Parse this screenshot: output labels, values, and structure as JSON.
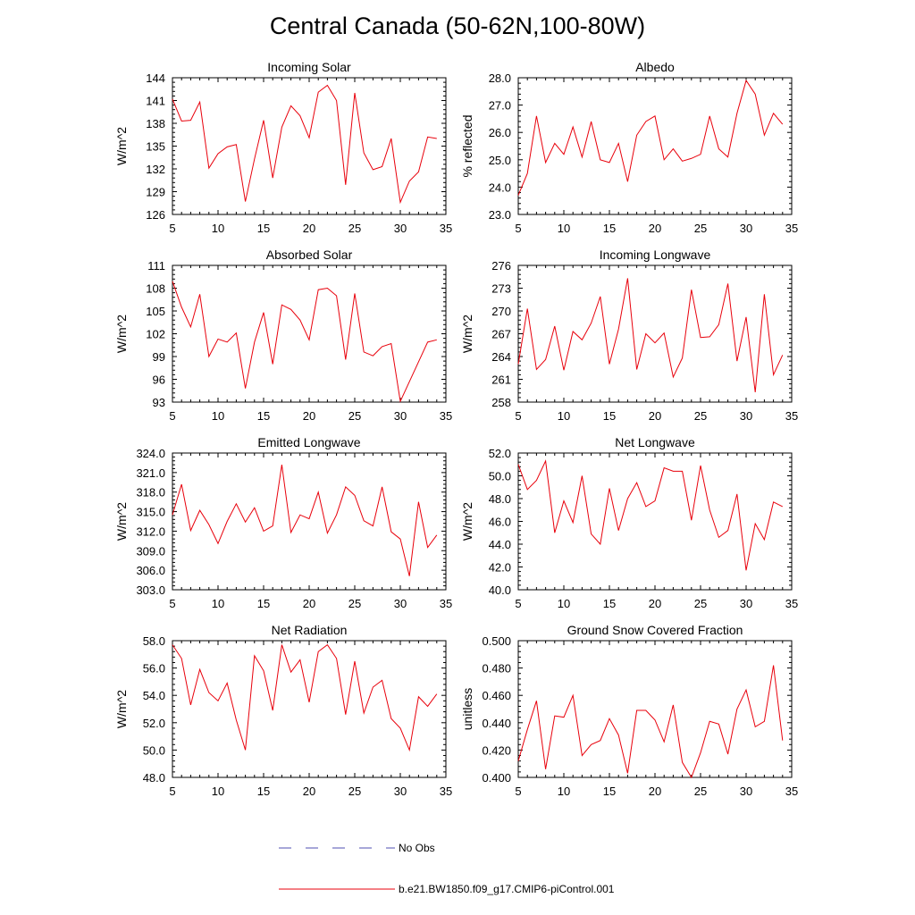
{
  "title": "Central Canada (50-62N,100-80W)",
  "legend": {
    "obs_label": "No Obs",
    "model_label": "b.e21.BW1850.f09_g17.CMIP6-piControl.001",
    "obs_color": "#4f4fb0",
    "model_color": "#e8000b"
  },
  "chart_data": [
    {
      "type": "line",
      "title": "Incoming Solar",
      "ylabel": "W/m^2",
      "xlabel": "",
      "xlim": [
        5,
        35
      ],
      "ylim": [
        126,
        144
      ],
      "xticks": [
        5,
        10,
        15,
        20,
        25,
        30,
        35
      ],
      "yticks": [
        "126",
        "129",
        "132",
        "135",
        "138",
        "141",
        "144"
      ],
      "x": [
        5,
        6,
        7,
        8,
        9,
        10,
        11,
        12,
        13,
        14,
        15,
        16,
        17,
        18,
        19,
        20,
        21,
        22,
        23,
        24,
        25,
        26,
        27,
        28,
        29,
        30,
        31,
        32,
        33,
        34
      ],
      "series": [
        {
          "name": "b.e21.BW1850.f09_g17.CMIP6-piControl.001",
          "values": [
            141.2,
            138.3,
            138.4,
            140.8,
            132.1,
            134.0,
            134.9,
            135.2,
            127.7,
            133.3,
            138.4,
            130.8,
            137.5,
            140.3,
            139.0,
            136.1,
            142.1,
            143.0,
            141.0,
            129.9,
            142.0,
            134.1,
            131.9,
            132.3,
            136.0,
            127.6,
            130.4,
            131.6,
            136.2,
            136.0
          ]
        }
      ]
    },
    {
      "type": "line",
      "title": "Albedo",
      "ylabel": "% reflected",
      "xlabel": "",
      "xlim": [
        5,
        35
      ],
      "ylim": [
        23,
        28
      ],
      "xticks": [
        5,
        10,
        15,
        20,
        25,
        30,
        35
      ],
      "yticks": [
        "23.0",
        "24.0",
        "25.0",
        "26.0",
        "27.0",
        "28.0"
      ],
      "x": [
        5,
        6,
        7,
        8,
        9,
        10,
        11,
        12,
        13,
        14,
        15,
        16,
        17,
        18,
        19,
        20,
        21,
        22,
        23,
        24,
        25,
        26,
        27,
        28,
        29,
        30,
        31,
        32,
        33,
        34
      ],
      "series": [
        {
          "name": "b.e21.BW1850.f09_g17.CMIP6-piControl.001",
          "values": [
            23.7,
            24.5,
            26.6,
            24.9,
            25.6,
            25.2,
            26.2,
            25.1,
            26.4,
            25.0,
            24.9,
            25.6,
            24.2,
            25.9,
            26.4,
            26.6,
            25.0,
            25.4,
            24.95,
            25.05,
            25.2,
            26.6,
            25.4,
            25.1,
            26.7,
            27.9,
            27.4,
            25.9,
            26.7,
            26.3
          ]
        }
      ]
    },
    {
      "type": "line",
      "title": "Absorbed Solar",
      "ylabel": "W/m^2",
      "xlabel": "",
      "xlim": [
        5,
        35
      ],
      "ylim": [
        93,
        111
      ],
      "xticks": [
        5,
        10,
        15,
        20,
        25,
        30,
        35
      ],
      "yticks": [
        "93",
        "96",
        "99",
        "102",
        "105",
        "108",
        "111"
      ],
      "x": [
        5,
        6,
        7,
        8,
        9,
        10,
        11,
        12,
        13,
        14,
        15,
        16,
        17,
        18,
        19,
        20,
        21,
        22,
        23,
        24,
        25,
        26,
        27,
        28,
        29,
        30,
        31,
        32,
        33,
        34
      ],
      "series": [
        {
          "name": "b.e21.BW1850.f09_g17.CMIP6-piControl.001",
          "values": [
            108.9,
            105.5,
            102.9,
            107.2,
            99.0,
            101.3,
            100.9,
            102.1,
            94.8,
            100.9,
            104.8,
            98.0,
            105.8,
            105.2,
            103.8,
            101.2,
            107.8,
            108.0,
            107.0,
            98.6,
            107.3,
            99.6,
            99.1,
            100.3,
            100.7,
            93.1,
            95.7,
            98.3,
            100.9,
            101.2
          ]
        }
      ]
    },
    {
      "type": "line",
      "title": "Incoming Longwave",
      "ylabel": "W/m^2",
      "xlabel": "",
      "xlim": [
        5,
        35
      ],
      "ylim": [
        258,
        276
      ],
      "xticks": [
        5,
        10,
        15,
        20,
        25,
        30,
        35
      ],
      "yticks": [
        "258",
        "261",
        "264",
        "267",
        "270",
        "273",
        "276"
      ],
      "x": [
        5,
        6,
        7,
        8,
        9,
        10,
        11,
        12,
        13,
        14,
        15,
        16,
        17,
        18,
        19,
        20,
        21,
        22,
        23,
        24,
        25,
        26,
        27,
        28,
        29,
        30,
        31,
        32,
        33,
        34
      ],
      "series": [
        {
          "name": "b.e21.BW1850.f09_g17.CMIP6-piControl.001",
          "values": [
            263.0,
            270.3,
            262.3,
            263.6,
            268.0,
            262.2,
            267.3,
            266.2,
            268.4,
            271.9,
            263.0,
            267.6,
            274.3,
            262.3,
            267.0,
            265.8,
            267.1,
            261.3,
            263.8,
            272.8,
            266.5,
            266.6,
            268.2,
            273.6,
            263.4,
            269.2,
            259.3,
            272.2,
            261.6,
            264.2
          ]
        }
      ]
    },
    {
      "type": "line",
      "title": "Emitted Longwave",
      "ylabel": "W/m^2",
      "xlabel": "",
      "xlim": [
        5,
        35
      ],
      "ylim": [
        303,
        324
      ],
      "xticks": [
        5,
        10,
        15,
        20,
        25,
        30,
        35
      ],
      "yticks": [
        "303.0",
        "306.0",
        "309.0",
        "312.0",
        "315.0",
        "318.0",
        "321.0",
        "324.0"
      ],
      "x": [
        5,
        6,
        7,
        8,
        9,
        10,
        11,
        12,
        13,
        14,
        15,
        16,
        17,
        18,
        19,
        20,
        21,
        22,
        23,
        24,
        25,
        26,
        27,
        28,
        29,
        30,
        31,
        32,
        33,
        34
      ],
      "series": [
        {
          "name": "b.e21.BW1850.f09_g17.CMIP6-piControl.001",
          "values": [
            314.5,
            319.2,
            312.1,
            315.2,
            313.0,
            310.1,
            313.5,
            316.2,
            313.4,
            315.6,
            312.0,
            312.8,
            322.2,
            311.8,
            314.5,
            313.9,
            318.0,
            311.7,
            314.5,
            318.8,
            317.5,
            313.6,
            312.8,
            318.8,
            311.9,
            310.8,
            305.1,
            316.5,
            309.5,
            311.4
          ]
        }
      ]
    },
    {
      "type": "line",
      "title": "Net Longwave",
      "ylabel": "W/m^2",
      "xlabel": "",
      "xlim": [
        5,
        35
      ],
      "ylim": [
        40,
        52
      ],
      "xticks": [
        5,
        10,
        15,
        20,
        25,
        30,
        35
      ],
      "yticks": [
        "40.0",
        "42.0",
        "44.0",
        "46.0",
        "48.0",
        "50.0",
        "52.0"
      ],
      "x": [
        5,
        6,
        7,
        8,
        9,
        10,
        11,
        12,
        13,
        14,
        15,
        16,
        17,
        18,
        19,
        20,
        21,
        22,
        23,
        24,
        25,
        26,
        27,
        28,
        29,
        30,
        31,
        32,
        33,
        34
      ],
      "series": [
        {
          "name": "b.e21.BW1850.f09_g17.CMIP6-piControl.001",
          "values": [
            51.0,
            48.8,
            49.6,
            51.3,
            45.0,
            47.8,
            45.9,
            50.0,
            44.9,
            44.0,
            48.9,
            45.2,
            48.0,
            49.4,
            47.3,
            47.8,
            50.7,
            50.4,
            50.4,
            46.1,
            50.9,
            47.0,
            44.6,
            45.2,
            48.4,
            41.7,
            45.8,
            44.4,
            47.7,
            47.3
          ]
        }
      ]
    },
    {
      "type": "line",
      "title": "Net Radiation",
      "ylabel": "W/m^2",
      "xlabel": "",
      "xlim": [
        5,
        35
      ],
      "ylim": [
        48,
        58
      ],
      "xticks": [
        5,
        10,
        15,
        20,
        25,
        30,
        35
      ],
      "yticks": [
        "48.0",
        "50.0",
        "52.0",
        "54.0",
        "56.0",
        "58.0"
      ],
      "x": [
        5,
        6,
        7,
        8,
        9,
        10,
        11,
        12,
        13,
        14,
        15,
        16,
        17,
        18,
        19,
        20,
        21,
        22,
        23,
        24,
        25,
        26,
        27,
        28,
        29,
        30,
        31,
        32,
        33,
        34
      ],
      "series": [
        {
          "name": "b.e21.BW1850.f09_g17.CMIP6-piControl.001",
          "values": [
            57.7,
            56.7,
            53.3,
            55.9,
            54.2,
            53.6,
            54.9,
            52.2,
            50.0,
            56.9,
            55.8,
            52.9,
            57.7,
            55.7,
            56.6,
            53.5,
            57.2,
            57.7,
            56.7,
            52.6,
            56.5,
            52.7,
            54.6,
            55.1,
            52.3,
            51.6,
            50.0,
            53.9,
            53.2,
            54.1
          ]
        }
      ]
    },
    {
      "type": "line",
      "title": "Ground Snow Covered Fraction",
      "ylabel": "unitless",
      "xlabel": "",
      "xlim": [
        5,
        35
      ],
      "ylim": [
        0.4,
        0.5
      ],
      "xticks": [
        5,
        10,
        15,
        20,
        25,
        30,
        35
      ],
      "yticks": [
        "0.400",
        "0.420",
        "0.440",
        "0.460",
        "0.480",
        "0.500"
      ],
      "x": [
        5,
        6,
        7,
        8,
        9,
        10,
        11,
        12,
        13,
        14,
        15,
        16,
        17,
        18,
        19,
        20,
        21,
        22,
        23,
        24,
        25,
        26,
        27,
        28,
        29,
        30,
        31,
        32,
        33,
        34
      ],
      "series": [
        {
          "name": "b.e21.BW1850.f09_g17.CMIP6-piControl.001",
          "values": [
            0.412,
            0.435,
            0.456,
            0.406,
            0.445,
            0.444,
            0.46,
            0.416,
            0.424,
            0.427,
            0.443,
            0.431,
            0.403,
            0.449,
            0.449,
            0.442,
            0.426,
            0.453,
            0.411,
            0.4,
            0.418,
            0.441,
            0.439,
            0.417,
            0.45,
            0.464,
            0.437,
            0.441,
            0.482,
            0.427
          ]
        }
      ]
    }
  ]
}
